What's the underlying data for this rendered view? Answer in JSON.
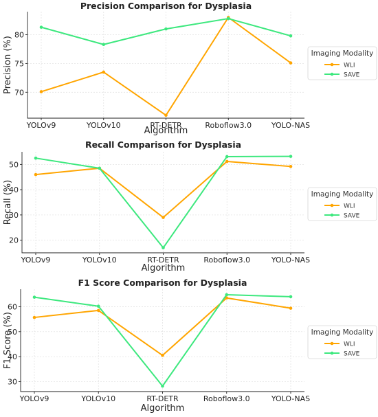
{
  "chart_data": [
    {
      "type": "line",
      "title": "Precision Comparison for Dysplasia",
      "xlabel": "Algorithm",
      "ylabel": "Precision (%)",
      "categories": [
        "YOLOv9",
        "YOLOv10",
        "RT-DETR",
        "Roboflow3.0",
        "YOLO-NAS"
      ],
      "ylim": [
        65.5,
        84
      ],
      "yticks": [
        70,
        75,
        80
      ],
      "grid": true,
      "legend_title": "Imaging Modality",
      "legend_position": "right",
      "series": [
        {
          "name": "WLI",
          "color": "#FFA500",
          "values": [
            70.1,
            73.5,
            66.0,
            83.0,
            75.1
          ]
        },
        {
          "name": "SAVE",
          "color": "#3DE87E",
          "values": [
            81.3,
            78.3,
            81.0,
            82.8,
            79.8
          ]
        }
      ]
    },
    {
      "type": "line",
      "title": "Recall Comparison for Dysplasia",
      "xlabel": "Algorithm",
      "ylabel": "Recall (%)",
      "categories": [
        "YOLOv9",
        "YOLOv10",
        "RT-DETR",
        "Roboflow3.0",
        "YOLO-NAS"
      ],
      "ylim": [
        15,
        55
      ],
      "yticks": [
        20,
        30,
        40,
        50
      ],
      "grid": true,
      "legend_title": "Imaging Modality",
      "legend_position": "right",
      "series": [
        {
          "name": "WLI",
          "color": "#FFA500",
          "values": [
            46.0,
            48.5,
            29.0,
            51.2,
            49.2
          ]
        },
        {
          "name": "SAVE",
          "color": "#3DE87E",
          "values": [
            52.5,
            48.5,
            17.0,
            53.1,
            53.2
          ]
        }
      ]
    },
    {
      "type": "line",
      "title": "F1 Score Comparison for Dysplasia",
      "xlabel": "Algorithm",
      "ylabel": "F1 Score (%)",
      "categories": [
        "YOLOv9",
        "YOLOv10",
        "RT-DETR",
        "Roboflow3.0",
        "YOLO-NAS"
      ],
      "ylim": [
        26,
        67
      ],
      "yticks": [
        30,
        40,
        50,
        60
      ],
      "grid": true,
      "legend_title": "Imaging Modality",
      "legend_position": "right",
      "series": [
        {
          "name": "WLI",
          "color": "#FFA500",
          "values": [
            55.7,
            58.5,
            40.5,
            63.5,
            59.4
          ]
        },
        {
          "name": "SAVE",
          "color": "#3DE87E",
          "values": [
            63.8,
            60.2,
            28.2,
            64.8,
            64.0
          ]
        }
      ]
    }
  ]
}
